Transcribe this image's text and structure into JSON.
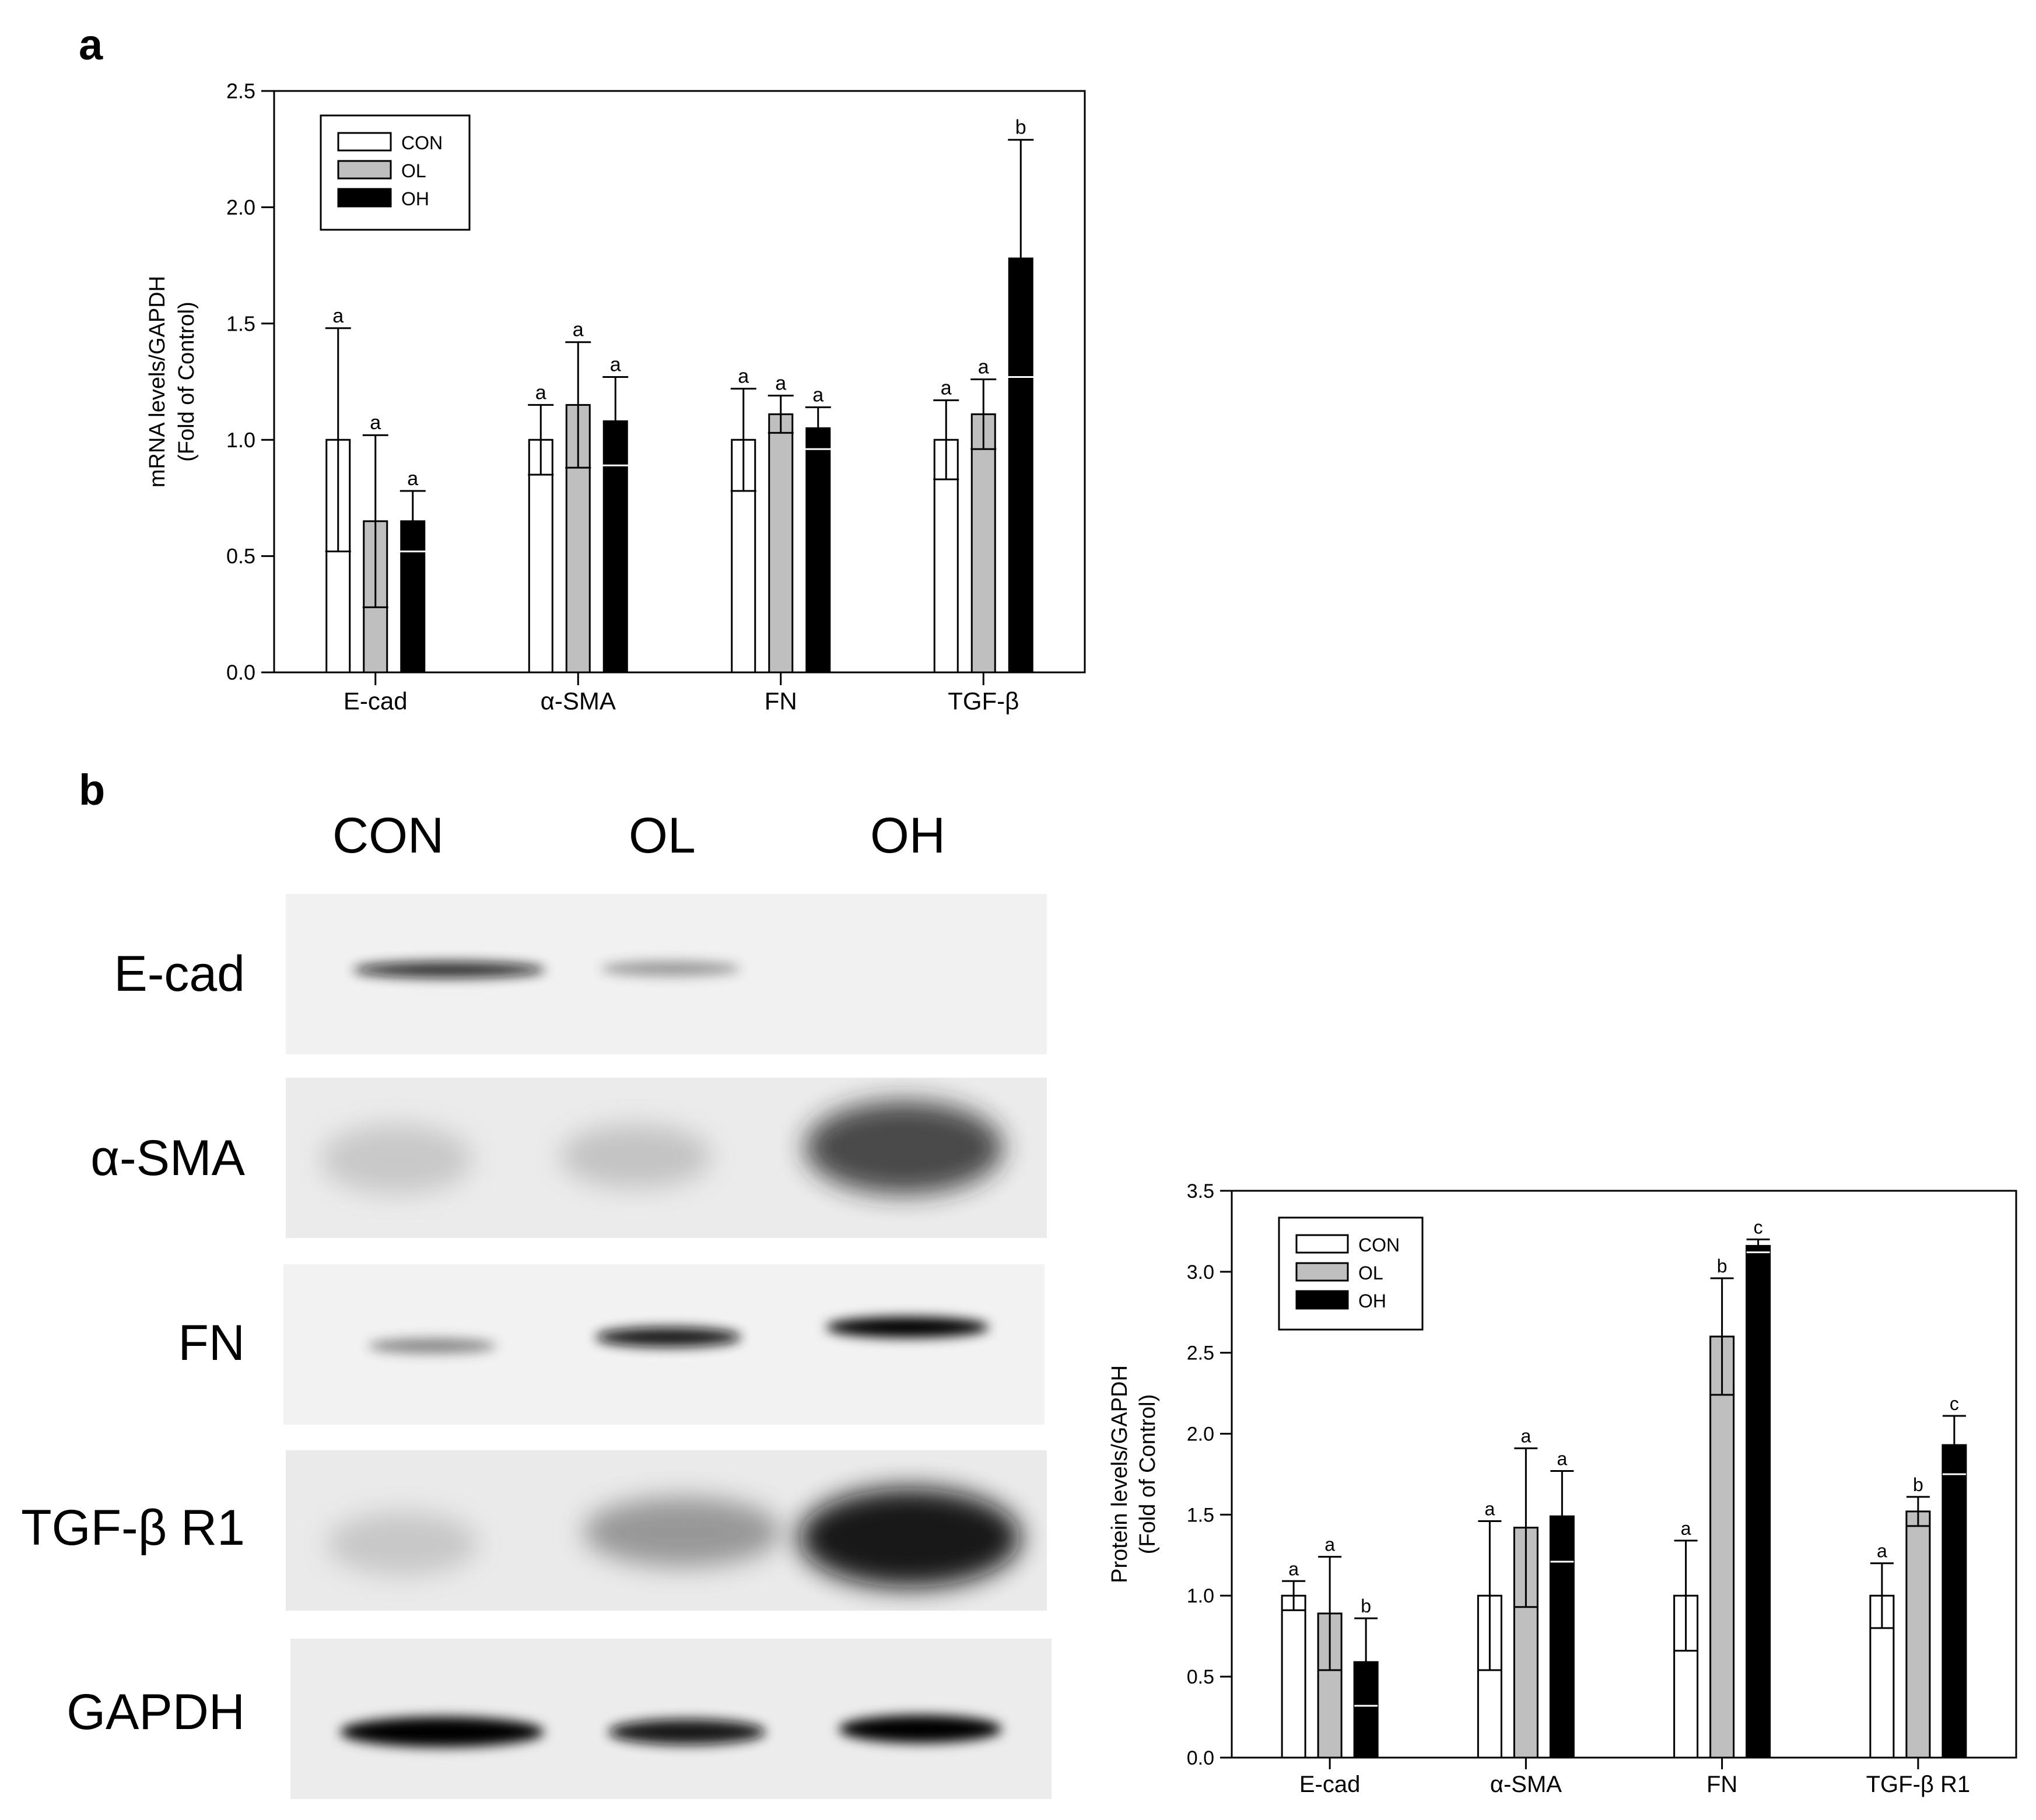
{
  "panels": {
    "a": "a",
    "b": "b"
  },
  "blot": {
    "lanes": [
      "CON",
      "OL",
      "OH"
    ],
    "rows": [
      {
        "label": "E-cad",
        "intensity": [
          0.85,
          0.35,
          0.02
        ]
      },
      {
        "label": "α-SMA",
        "intensity": [
          0.15,
          0.2,
          0.75
        ]
      },
      {
        "label": "FN",
        "intensity": [
          0.35,
          0.85,
          1.0
        ]
      },
      {
        "label": "TGF-β  R1",
        "intensity": [
          0.2,
          0.45,
          0.95
        ]
      },
      {
        "label": "GAPDH",
        "intensity": [
          0.95,
          0.9,
          0.92
        ]
      }
    ]
  },
  "chart_data": [
    {
      "type": "bar",
      "panel": "a",
      "ylabel": [
        "mRNA levels/GAPDH",
        "(Fold of Control)"
      ],
      "categories": [
        "E-cad",
        "α-SMA",
        "FN",
        "TGF-β"
      ],
      "ylim": [
        0,
        2.5
      ],
      "yticks": [
        "0.0",
        "0.5",
        "1.0",
        "1.5",
        "2.0",
        "2.5"
      ],
      "legend": "top-left",
      "series": [
        {
          "name": "CON",
          "color": "#ffffff",
          "values": [
            1.0,
            1.0,
            1.0,
            1.0
          ],
          "errors": [
            0.48,
            0.15,
            0.22,
            0.17
          ],
          "letters": [
            "a",
            "a",
            "a",
            "a"
          ]
        },
        {
          "name": "OL",
          "color": "#bfbfbf",
          "values": [
            0.65,
            1.15,
            1.11,
            1.11
          ],
          "errors": [
            0.37,
            0.27,
            0.08,
            0.15
          ],
          "letters": [
            "a",
            "a",
            "a",
            "a"
          ]
        },
        {
          "name": "OH",
          "color": "#000000",
          "values": [
            0.65,
            1.08,
            1.05,
            1.78
          ],
          "errors": [
            0.13,
            0.19,
            0.09,
            0.51
          ],
          "letters": [
            "a",
            "a",
            "a",
            "b"
          ]
        }
      ]
    },
    {
      "type": "bar",
      "panel": "b",
      "ylabel": [
        "Protein levels/GAPDH",
        "(Fold of Control)"
      ],
      "categories": [
        "E-cad",
        "α-SMA",
        "FN",
        "TGF-β  R1"
      ],
      "ylim": [
        0,
        3.5
      ],
      "yticks": [
        "0.0",
        "0.5",
        "1.0",
        "1.5",
        "2.0",
        "2.5",
        "3.0",
        "3.5"
      ],
      "legend": "top-left",
      "series": [
        {
          "name": "CON",
          "color": "#ffffff",
          "values": [
            1.0,
            1.0,
            1.0,
            1.0
          ],
          "errors": [
            0.09,
            0.46,
            0.34,
            0.2
          ],
          "letters": [
            "a",
            "a",
            "a",
            "a"
          ]
        },
        {
          "name": "OL",
          "color": "#bfbfbf",
          "values": [
            0.89,
            1.42,
            2.6,
            1.52
          ],
          "errors": [
            0.35,
            0.49,
            0.36,
            0.09
          ],
          "letters": [
            "a",
            "a",
            "b",
            "b"
          ]
        },
        {
          "name": "OH",
          "color": "#000000",
          "values": [
            0.59,
            1.49,
            3.16,
            1.93
          ],
          "errors": [
            0.27,
            0.28,
            0.04,
            0.18
          ],
          "letters": [
            "b",
            "a",
            "c",
            "c"
          ]
        }
      ]
    }
  ]
}
